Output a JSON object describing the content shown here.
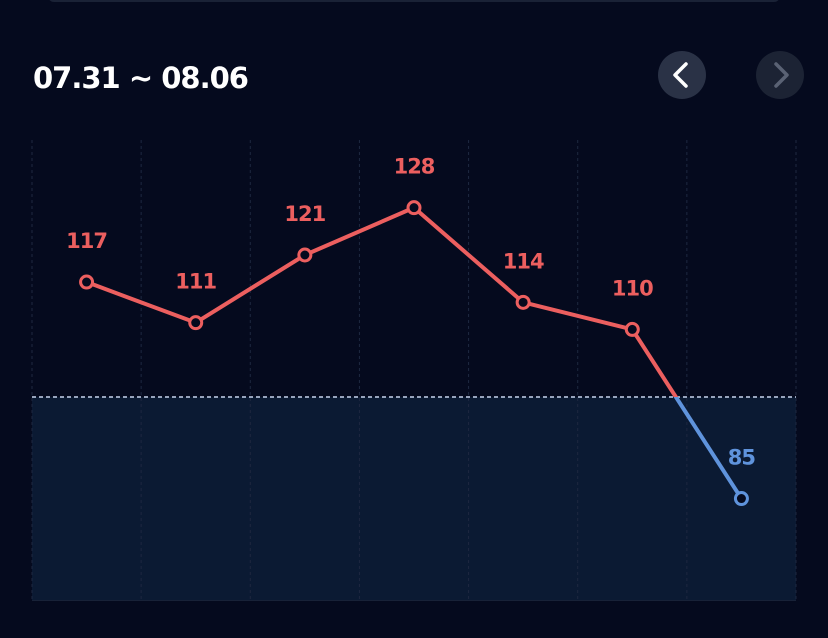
{
  "chart_data": {
    "type": "line",
    "title": "07.31 ~ 08.06",
    "values": [
      117,
      111,
      121,
      128,
      114,
      110,
      85
    ],
    "threshold": 100,
    "color": "#ec5f5f",
    "below_color": "#5f93dc",
    "ylim": [
      70,
      138
    ]
  }
}
